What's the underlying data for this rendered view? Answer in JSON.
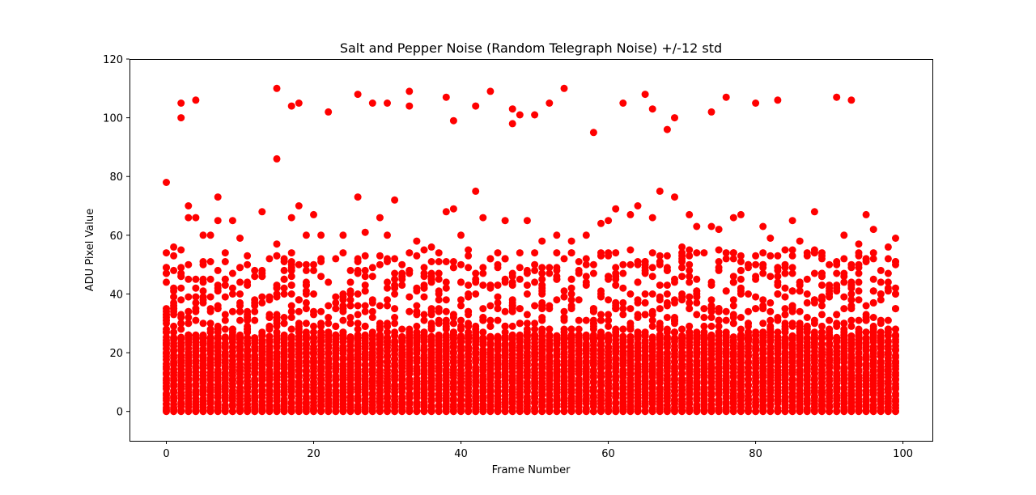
{
  "chart_data": {
    "type": "scatter",
    "title": "Salt and Pepper Noise (Random Telegraph Noise) +/-12 std",
    "xlabel": "Frame Number",
    "ylabel": "ADU Pixel Value",
    "xlim": [
      -5,
      104
    ],
    "ylim": [
      -10,
      120
    ],
    "xticks": [
      0,
      20,
      40,
      60,
      80,
      100
    ],
    "yticks": [
      0,
      20,
      40,
      60,
      80,
      100,
      120
    ],
    "grid": false,
    "marker_color": "#ff0000",
    "frames": {
      "start": 0,
      "end": 99
    },
    "dense_band": {
      "min": 0,
      "max": 25,
      "description_values_shown": "every frame has points filling 0 to about 25"
    },
    "outliers_x": [
      0,
      1,
      2,
      2,
      3,
      4,
      7,
      15,
      15,
      17,
      18,
      22,
      26,
      28,
      30,
      33,
      33,
      38,
      39,
      42,
      44,
      47,
      47,
      48,
      50,
      52,
      54,
      58,
      62,
      65,
      66,
      68,
      69,
      74,
      76,
      80,
      83,
      91,
      93,
      0,
      3,
      4,
      7,
      9,
      13,
      17,
      18,
      20,
      26,
      29,
      31,
      38,
      39,
      42,
      61,
      63,
      66,
      67,
      69,
      71,
      74,
      78,
      85,
      88,
      95,
      5,
      6,
      10,
      15,
      19,
      21,
      24,
      27,
      30,
      34,
      36,
      40,
      43,
      46,
      49,
      51,
      53,
      55,
      57,
      59,
      60,
      64,
      70,
      72,
      75,
      77,
      81,
      82,
      86,
      89,
      92,
      94,
      96,
      98,
      99
    ],
    "outliers_y": [
      78,
      56,
      105,
      100,
      70,
      106,
      73,
      110,
      86,
      104,
      105,
      102,
      108,
      105,
      105,
      109,
      104,
      107,
      99,
      104,
      109,
      103,
      98,
      101,
      101,
      105,
      110,
      95,
      105,
      108,
      103,
      96,
      100,
      102,
      107,
      105,
      106,
      107,
      106,
      47,
      66,
      66,
      65,
      65,
      68,
      66,
      70,
      67,
      73,
      66,
      72,
      68,
      69,
      75,
      69,
      67,
      66,
      75,
      73,
      67,
      63,
      67,
      65,
      68,
      67,
      60,
      60,
      59,
      57,
      60,
      60,
      60,
      61,
      60,
      58,
      56,
      60,
      66,
      65,
      65,
      58,
      60,
      58,
      60,
      64,
      65,
      70,
      56,
      63,
      62,
      66,
      63,
      59,
      58,
      52,
      60,
      57,
      62,
      56,
      59
    ],
    "mid_band_density": "points spread across every frame between about 25 and 55"
  }
}
